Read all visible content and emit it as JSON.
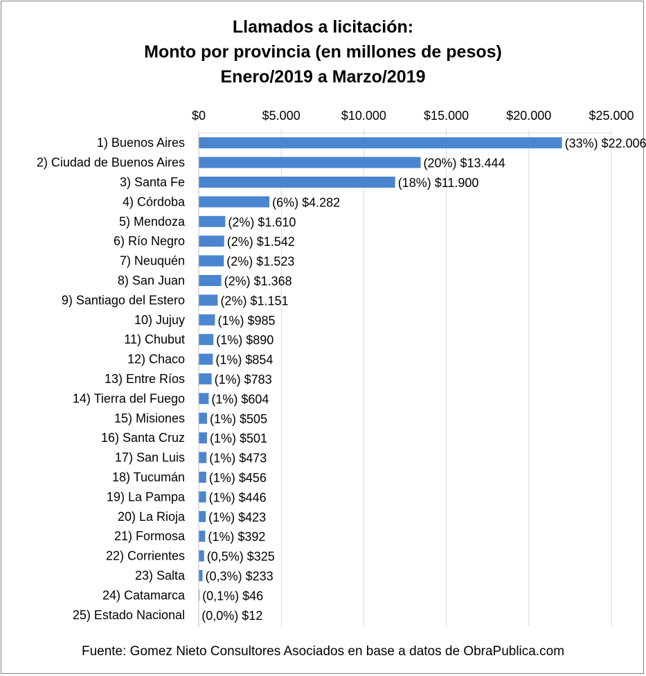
{
  "chart_data": {
    "type": "bar",
    "orientation": "horizontal",
    "title_lines": [
      "Llamados a licitación:",
      "Monto por provincia (en millones de pesos)",
      "Enero/2019 a Marzo/2019"
    ],
    "source": "Fuente: Gomez Nieto Consultores Asociados en base a datos de ObraPublica.com",
    "xlim": [
      0,
      25000
    ],
    "x_ticks": [
      0,
      5000,
      10000,
      15000,
      20000,
      25000
    ],
    "x_tick_labels": [
      "$0",
      "$5.000",
      "$10.000",
      "$15.000",
      "$20.000",
      "$25.000"
    ],
    "x_axis_position": "top",
    "grid": true,
    "bar_color": "#4a86d0",
    "categories": [
      "1) Buenos Aires",
      "2) Ciudad de Buenos Aires",
      "3) Santa Fe",
      "4) Córdoba",
      "5) Mendoza",
      "6) Río Negro",
      "7) Neuquén",
      "8) San Juan",
      "9) Santiago del Estero",
      "10) Jujuy",
      "11) Chubut",
      "12) Chaco",
      "13) Entre Ríos",
      "14) Tierra del Fuego",
      "15) Misiones",
      "16) Santa Cruz",
      "17) San Luis",
      "18) Tucumán",
      "19) La Pampa",
      "20) La Rioja",
      "21) Formosa",
      "22) Corrientes",
      "23) Salta",
      "24) Catamarca",
      "25) Estado Nacional"
    ],
    "values": [
      22006,
      13444,
      11900,
      4282,
      1610,
      1542,
      1523,
      1368,
      1151,
      985,
      890,
      854,
      783,
      604,
      505,
      501,
      473,
      456,
      446,
      423,
      392,
      325,
      233,
      46,
      12
    ],
    "data_labels": [
      "(33%) $22.006",
      "(20%) $13.444",
      "(18%) $11.900",
      "(6%) $4.282",
      "(2%) $1.610",
      "(2%) $1.542",
      "(2%) $1.523",
      "(2%) $1.368",
      "(2%) $1.151",
      "(1%) $985",
      "(1%) $890",
      "(1%) $854",
      "(1%) $783",
      "(1%) $604",
      "(1%) $505",
      "(1%) $501",
      "(1%) $473",
      "(1%) $456",
      "(1%) $446",
      "(1%) $423",
      "(1%) $392",
      "(0,5%) $325",
      "(0,3%) $233",
      "(0,1%) $46",
      "(0,0%) $12"
    ]
  }
}
